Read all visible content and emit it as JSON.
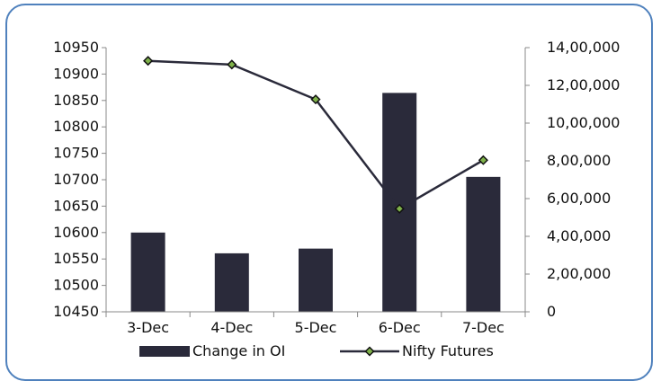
{
  "chart_data": {
    "type": "bar+line",
    "categories": [
      "3-Dec",
      "4-Dec",
      "5-Dec",
      "6-Dec",
      "7-Dec"
    ],
    "series": [
      {
        "name": "Change in OI",
        "type": "bar",
        "axis": "right",
        "values": [
          420000,
          310000,
          335000,
          1160000,
          715000
        ],
        "color": "#2a2a3a"
      },
      {
        "name": "Nifty Futures",
        "type": "line",
        "axis": "left",
        "values": [
          10925,
          10918,
          10852,
          10645,
          10737
        ],
        "color": "#2a2a3a"
      }
    ],
    "left_axis": {
      "ylim": [
        10450,
        10950
      ],
      "ticks": [
        "10450",
        "10500",
        "10550",
        "10600",
        "10650",
        "10700",
        "10750",
        "10800",
        "10850",
        "10900",
        "10950"
      ]
    },
    "right_axis": {
      "ylim": [
        0,
        1400000
      ],
      "ticks": [
        "0",
        "2,00,000",
        "4,00,000",
        "6,00,000",
        "8,00,000",
        "10,00,000",
        "12,00,000",
        "14,00,000"
      ]
    },
    "legend": {
      "position": "bottom"
    },
    "grid": false
  }
}
